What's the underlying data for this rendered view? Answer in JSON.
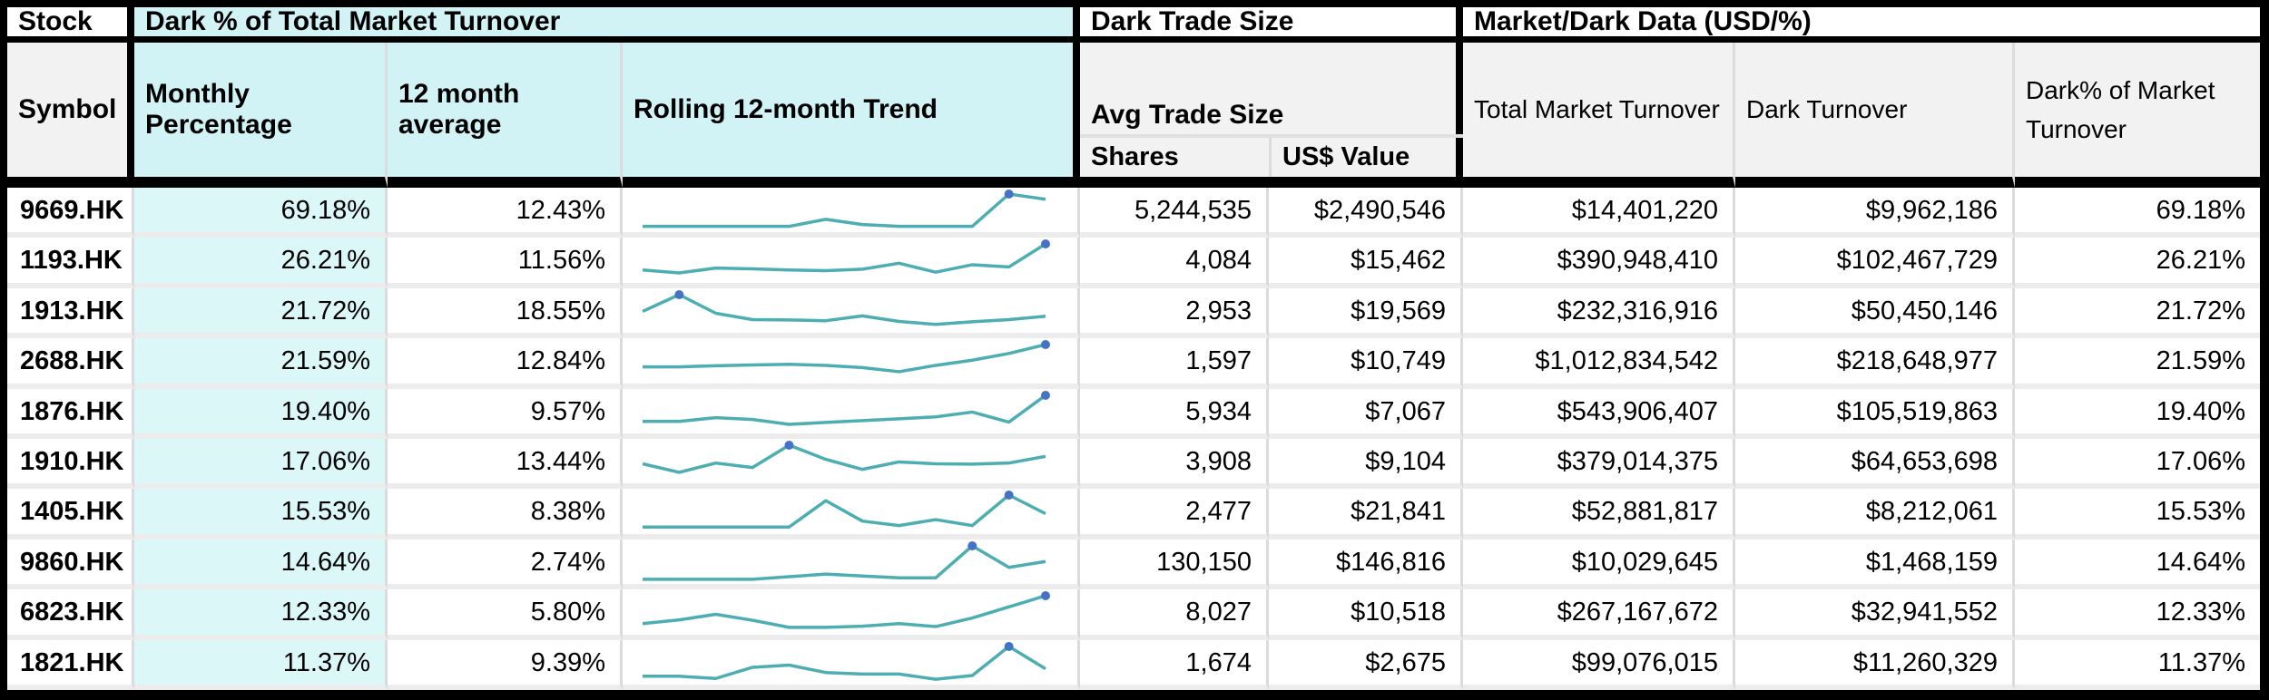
{
  "table": {
    "header": {
      "stock_section": "Stock",
      "symbol": "Symbol",
      "dark_pct_section": "Dark % of Total Market Turnover",
      "monthly_percentage": "Monthly Percentage",
      "twelve_month_average": "12 month average",
      "rolling_trend": "Rolling 12-month Trend",
      "dark_trade_size_section": "Dark Trade Size",
      "avg_trade_size": "Avg Trade Size",
      "shares": "Shares",
      "usd_value": "US$ Value",
      "market_dark_section": "Market/Dark Data (USD/%)",
      "total_market_turnover": "Total Market Turnover",
      "dark_turnover": "Dark Turnover",
      "dark_pct_market": "Dark% of Market Turnover"
    },
    "rows": [
      {
        "symbol": "9669.HK",
        "monthly_pct": "69.18%",
        "avg_12m": "12.43%",
        "shares": "5,244,535",
        "usd_value": "$2,490,546",
        "total_market_turnover": "$14,401,220",
        "dark_turnover": "$9,962,186",
        "dark_pct_market": "69.18%",
        "sparkline": [
          0.13,
          0.13,
          0.13,
          0.13,
          0.13,
          0.32,
          0.18,
          0.13,
          0.13,
          0.13,
          1.0,
          0.86
        ]
      },
      {
        "symbol": "1193.HK",
        "monthly_pct": "26.21%",
        "avg_12m": "11.56%",
        "shares": "4,084",
        "usd_value": "$15,462",
        "total_market_turnover": "$390,948,410",
        "dark_turnover": "$102,467,729",
        "dark_pct_market": "26.21%",
        "sparkline": [
          0.3,
          0.22,
          0.35,
          0.33,
          0.3,
          0.28,
          0.32,
          0.48,
          0.24,
          0.44,
          0.38,
          1.0
        ]
      },
      {
        "symbol": "1913.HK",
        "monthly_pct": "21.72%",
        "avg_12m": "18.55%",
        "shares": "2,953",
        "usd_value": "$19,569",
        "total_market_turnover": "$232,316,916",
        "dark_turnover": "$50,450,146",
        "dark_pct_market": "21.72%",
        "sparkline": [
          0.55,
          1.0,
          0.5,
          0.33,
          0.32,
          0.3,
          0.43,
          0.28,
          0.2,
          0.27,
          0.33,
          0.42
        ]
      },
      {
        "symbol": "2688.HK",
        "monthly_pct": "21.59%",
        "avg_12m": "12.84%",
        "shares": "1,597",
        "usd_value": "$10,749",
        "total_market_turnover": "$1,012,834,542",
        "dark_turnover": "$218,648,977",
        "dark_pct_market": "21.59%",
        "sparkline": [
          0.4,
          0.4,
          0.43,
          0.45,
          0.47,
          0.44,
          0.38,
          0.27,
          0.44,
          0.58,
          0.76,
          1.0
        ]
      },
      {
        "symbol": "1876.HK",
        "monthly_pct": "19.40%",
        "avg_12m": "9.57%",
        "shares": "5,934",
        "usd_value": "$7,067",
        "total_market_turnover": "$543,906,407",
        "dark_turnover": "$105,519,863",
        "dark_pct_market": "19.40%",
        "sparkline": [
          0.3,
          0.3,
          0.4,
          0.35,
          0.22,
          0.27,
          0.32,
          0.37,
          0.42,
          0.55,
          0.28,
          1.0
        ]
      },
      {
        "symbol": "1910.HK",
        "monthly_pct": "17.06%",
        "avg_12m": "13.44%",
        "shares": "3,908",
        "usd_value": "$9,104",
        "total_market_turnover": "$379,014,375",
        "dark_turnover": "$64,653,698",
        "dark_pct_market": "17.06%",
        "sparkline": [
          0.5,
          0.27,
          0.52,
          0.4,
          1.0,
          0.62,
          0.35,
          0.55,
          0.5,
          0.49,
          0.52,
          0.7
        ]
      },
      {
        "symbol": "1405.HK",
        "monthly_pct": "15.53%",
        "avg_12m": "8.38%",
        "shares": "2,477",
        "usd_value": "$21,841",
        "total_market_turnover": "$52,881,817",
        "dark_turnover": "$8,212,061",
        "dark_pct_market": "15.53%",
        "sparkline": [
          0.14,
          0.14,
          0.14,
          0.14,
          0.14,
          0.85,
          0.3,
          0.18,
          0.34,
          0.18,
          1.0,
          0.5
        ]
      },
      {
        "symbol": "9860.HK",
        "monthly_pct": "14.64%",
        "avg_12m": "2.74%",
        "shares": "130,150",
        "usd_value": "$146,816",
        "total_market_turnover": "$10,029,645",
        "dark_turnover": "$1,468,159",
        "dark_pct_market": "14.64%",
        "sparkline": [
          0.1,
          0.1,
          0.1,
          0.1,
          0.17,
          0.24,
          0.19,
          0.14,
          0.14,
          1.0,
          0.42,
          0.58
        ]
      },
      {
        "symbol": "6823.HK",
        "monthly_pct": "12.33%",
        "avg_12m": "5.80%",
        "shares": "8,027",
        "usd_value": "$10,518",
        "total_market_turnover": "$267,167,672",
        "dark_turnover": "$32,941,552",
        "dark_pct_market": "12.33%",
        "sparkline": [
          0.25,
          0.35,
          0.5,
          0.34,
          0.15,
          0.15,
          0.18,
          0.25,
          0.17,
          0.4,
          0.7,
          1.0
        ]
      },
      {
        "symbol": "1821.HK",
        "monthly_pct": "11.37%",
        "avg_12m": "9.39%",
        "shares": "1,674",
        "usd_value": "$2,675",
        "total_market_turnover": "$99,076,015",
        "dark_turnover": "$11,260,329",
        "dark_pct_market": "11.37%",
        "sparkline": [
          0.2,
          0.2,
          0.14,
          0.44,
          0.5,
          0.3,
          0.26,
          0.26,
          0.12,
          0.22,
          1.0,
          0.4
        ]
      }
    ]
  },
  "colors": {
    "header_cyan": "#D2F3F5",
    "cell_cyan": "#DCF7F8",
    "header_gray": "#F2F2F2",
    "grid_line": "#DBDBDB",
    "row_gap": "#ECECEC",
    "border_black": "#000000",
    "sparkline_line": "#4DAEB2",
    "sparkline_marker": "#4472C4"
  }
}
